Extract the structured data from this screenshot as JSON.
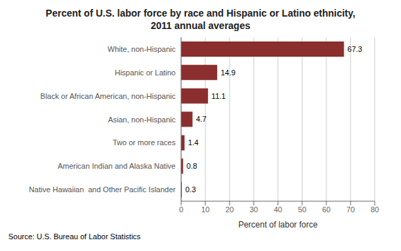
{
  "chart_data": {
    "type": "bar",
    "orientation": "horizontal",
    "title": "Percent of U.S. labor force by race and Hispanic or Latino ethnicity,\n2011 annual averages",
    "categories": [
      "Native Hawaiian  and Other Pacific Islander",
      "American Indian and Alaska Native",
      "Two or more races",
      "Asian, non-Hispanic",
      "Black or African American, non-Hispanic",
      "Hispanic or Latino",
      "White, non-Hispanic"
    ],
    "values": [
      0.3,
      0.8,
      1.4,
      4.7,
      11.1,
      14.9,
      67.3
    ],
    "color": "#8b2e2e",
    "xlabel": "Percent of labor force",
    "xlim": [
      0,
      80
    ],
    "xticks": [
      0,
      10,
      20,
      30,
      40,
      50,
      60,
      70,
      80
    ],
    "grid": true,
    "data_labels": true,
    "annotations": [
      "Source: U.S. Bureau of Labor Statistics"
    ]
  }
}
